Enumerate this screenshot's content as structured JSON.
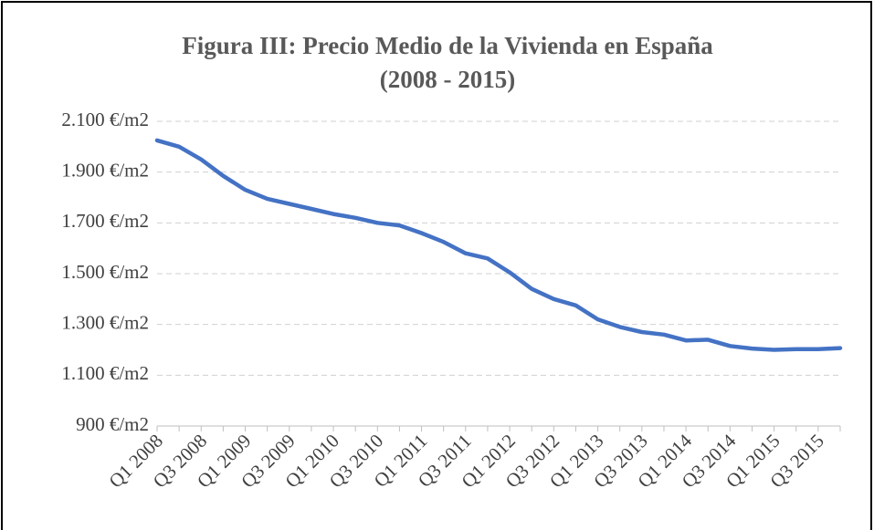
{
  "chart_data": {
    "type": "line",
    "title": [
      "Figura III: Precio Medio de la Vivienda en España",
      "(2008 - 2015)"
    ],
    "categories": [
      "Q1 2008",
      null,
      "Q3 2008",
      null,
      "Q1 2009",
      null,
      "Q3 2009",
      null,
      "Q1 2010",
      null,
      "Q3 2010",
      null,
      "Q1 2011",
      null,
      "Q3 2011",
      null,
      "Q1 2012",
      null,
      "Q3 2012",
      null,
      "Q1 2013",
      null,
      "Q3 2013",
      null,
      "Q1 2014",
      null,
      "Q3 2014",
      null,
      "Q1 2015",
      null,
      "Q3 2015",
      null
    ],
    "series": [
      {
        "name": "Precio medio",
        "color": "#4472c4",
        "values": [
          2025,
          2000,
          1950,
          1885,
          1830,
          1795,
          1775,
          1755,
          1735,
          1720,
          1700,
          1690,
          1660,
          1625,
          1580,
          1560,
          1505,
          1440,
          1400,
          1375,
          1320,
          1290,
          1270,
          1260,
          1237,
          1240,
          1215,
          1205,
          1200,
          1203,
          1203,
          1207
        ]
      }
    ],
    "ylim": [
      900,
      2100
    ],
    "yticks": [
      {
        "value": 900,
        "label": "900 €/m2"
      },
      {
        "value": 1100,
        "label": "1.100 €/m2"
      },
      {
        "value": 1300,
        "label": "1.300 €/m2"
      },
      {
        "value": 1500,
        "label": "1.500 €/m2"
      },
      {
        "value": 1700,
        "label": "1.700 €/m2"
      },
      {
        "value": 1900,
        "label": "1.900 €/m2"
      },
      {
        "value": 2100,
        "label": "2.100 €/m2"
      }
    ],
    "grid": true
  }
}
